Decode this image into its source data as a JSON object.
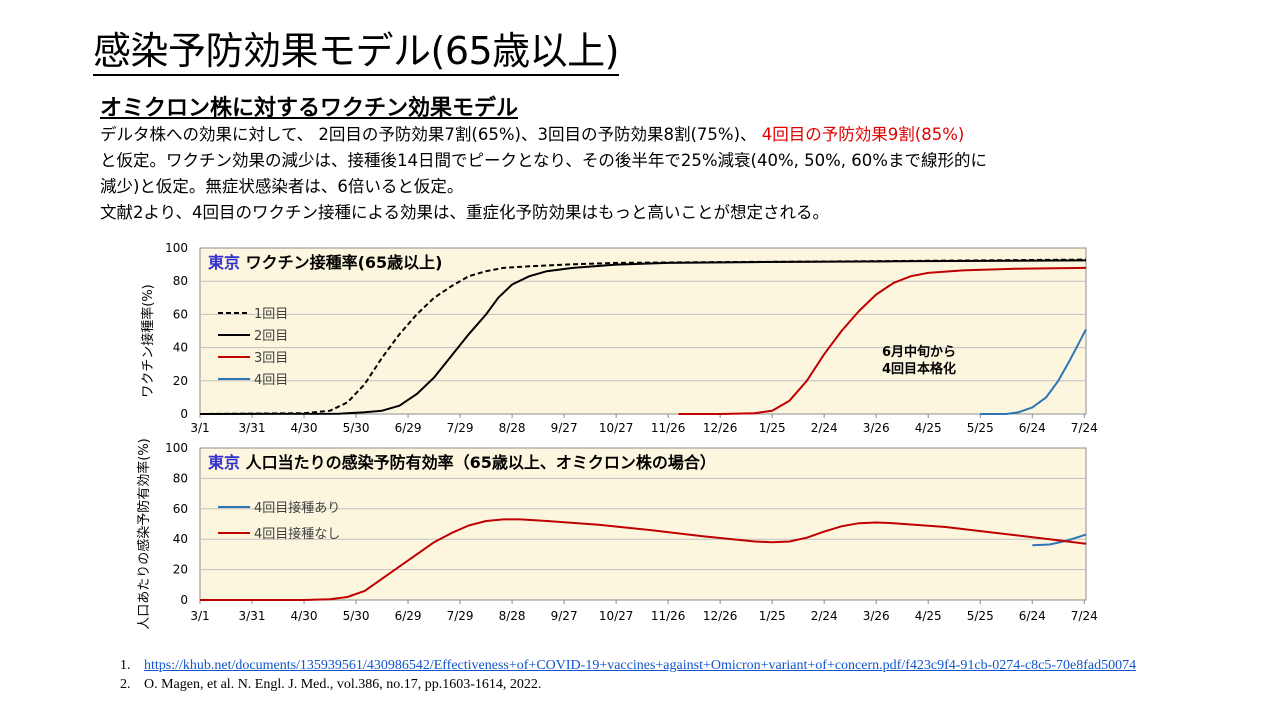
{
  "slide": {
    "title": "感染予防効果モデル(65歳以上)",
    "subtitle": "オミクロン株に対するワクチン効果モデル",
    "text": {
      "l1a": "デルタ株への効果に対して、 2回目の予防効果7割(65%)、3回目の予防効果8割(75%)、 ",
      "l1b": "4回目の予防効果9割(85%)",
      "l2": "と仮定。ワクチン効果の減少は、接種後14日間でピークとなり、その後半年で25%減衰(40%, 50%, 60%まで線形的に",
      "l3": "減少)と仮定。無症状感染者は、6倍いると仮定。",
      "l4": "文献2より、4回目のワクチン接種による効果は、重症化予防効果はもっと高いことが想定される。"
    }
  },
  "chart_data": [
    {
      "type": "line",
      "title_city": "東京",
      "title": "ワクチン接種率(65歳以上)",
      "ylabel": "ワクチン接種率(%)",
      "ylim": [
        0,
        100
      ],
      "yticks": [
        0,
        20,
        40,
        60,
        80,
        100
      ],
      "xticks": [
        "3/1",
        "3/31",
        "4/30",
        "5/30",
        "6/29",
        "7/29",
        "8/28",
        "9/27",
        "10/27",
        "11/26",
        "12/26",
        "1/25",
        "2/24",
        "3/26",
        "4/25",
        "5/25",
        "6/24",
        "7/24"
      ],
      "annotation": [
        "6月中旬から",
        "4回目本格化"
      ],
      "grid": true,
      "legend_position": "left",
      "series": [
        {
          "name": "1回目",
          "color": "#000000",
          "dash": true,
          "points": [
            [
              0,
              0
            ],
            [
              60,
              0.5
            ],
            [
              75,
              2
            ],
            [
              85,
              7
            ],
            [
              95,
              18
            ],
            [
              105,
              34
            ],
            [
              115,
              48
            ],
            [
              125,
              60
            ],
            [
              135,
              70
            ],
            [
              145,
              77
            ],
            [
              155,
              83
            ],
            [
              165,
              86
            ],
            [
              175,
              88
            ],
            [
              190,
              89
            ],
            [
              210,
              90
            ],
            [
              240,
              91
            ],
            [
              300,
              91.5
            ],
            [
              380,
              92
            ],
            [
              511,
              93
            ]
          ]
        },
        {
          "name": "2回目",
          "color": "#000000",
          "dash": false,
          "points": [
            [
              0,
              0
            ],
            [
              80,
              0.2
            ],
            [
              95,
              1
            ],
            [
              105,
              2
            ],
            [
              115,
              5
            ],
            [
              125,
              12
            ],
            [
              135,
              22
            ],
            [
              145,
              35
            ],
            [
              155,
              48
            ],
            [
              165,
              60
            ],
            [
              172,
              70
            ],
            [
              180,
              78
            ],
            [
              190,
              83
            ],
            [
              200,
              86
            ],
            [
              215,
              88
            ],
            [
              240,
              90
            ],
            [
              270,
              91
            ],
            [
              320,
              91.5
            ],
            [
              400,
              92
            ],
            [
              511,
              92.5
            ]
          ]
        },
        {
          "name": "3回目",
          "color": "#c00000",
          "dash": false,
          "points": [
            [
              276,
              0
            ],
            [
              300,
              0
            ],
            [
              320,
              0.5
            ],
            [
              330,
              2
            ],
            [
              340,
              8
            ],
            [
              350,
              20
            ],
            [
              360,
              36
            ],
            [
              370,
              50
            ],
            [
              380,
              62
            ],
            [
              390,
              72
            ],
            [
              400,
              79
            ],
            [
              410,
              83
            ],
            [
              420,
              85
            ],
            [
              440,
              86.5
            ],
            [
              470,
              87.5
            ],
            [
              511,
              88
            ]
          ]
        },
        {
          "name": "4回目",
          "color": "#2e75b6",
          "dash": false,
          "points": [
            [
              450,
              0
            ],
            [
              465,
              0
            ],
            [
              472,
              1
            ],
            [
              480,
              4
            ],
            [
              488,
              10
            ],
            [
              495,
              20
            ],
            [
              502,
              33
            ],
            [
              508,
              45
            ],
            [
              511,
              51
            ]
          ]
        }
      ]
    },
    {
      "type": "line",
      "title_city": "東京",
      "title": "人口当たりの感染予防有効率（65歳以上、オミクロン株の場合）",
      "ylabel": "人口あたりの感染予防有効率(%)",
      "ylim": [
        0,
        100
      ],
      "yticks": [
        0,
        20,
        40,
        60,
        80,
        100
      ],
      "xticks": [
        "3/1",
        "3/31",
        "4/30",
        "5/30",
        "6/29",
        "7/29",
        "8/28",
        "9/27",
        "10/27",
        "11/26",
        "12/26",
        "1/25",
        "2/24",
        "3/26",
        "4/25",
        "5/25",
        "6/24",
        "7/24"
      ],
      "grid": true,
      "legend_position": "left",
      "series": [
        {
          "name": "4回目接種あり",
          "color": "#2e75b6",
          "dash": false,
          "points": [
            [
              480,
              36
            ],
            [
              490,
              36.5
            ],
            [
              500,
              39
            ],
            [
              511,
              43
            ]
          ]
        },
        {
          "name": "4回目接種なし",
          "color": "#c00000",
          "dash": false,
          "points": [
            [
              0,
              0
            ],
            [
              60,
              0
            ],
            [
              75,
              0.5
            ],
            [
              85,
              2
            ],
            [
              95,
              6
            ],
            [
              105,
              14
            ],
            [
              115,
              22
            ],
            [
              125,
              30
            ],
            [
              135,
              38
            ],
            [
              145,
              44
            ],
            [
              155,
              49
            ],
            [
              165,
              52
            ],
            [
              175,
              53
            ],
            [
              185,
              53
            ],
            [
              200,
              52
            ],
            [
              230,
              49.5
            ],
            [
              260,
              46
            ],
            [
              290,
              42
            ],
            [
              320,
              38.5
            ],
            [
              330,
              38
            ],
            [
              340,
              38.5
            ],
            [
              350,
              41
            ],
            [
              360,
              45
            ],
            [
              370,
              48.5
            ],
            [
              380,
              50.5
            ],
            [
              390,
              51
            ],
            [
              400,
              50.5
            ],
            [
              430,
              48
            ],
            [
              460,
              44
            ],
            [
              490,
              40
            ],
            [
              511,
              37
            ]
          ]
        }
      ]
    }
  ],
  "references": [
    {
      "num": "1.",
      "text": "https://khub.net/documents/135939561/430986542/Effectiveness+of+COVID-19+vaccines+against+Omicron+variant+of+concern.pdf/f423c9f4-91cb-0274-c8c5-70e8fad50074"
    },
    {
      "num": "2.",
      "text": "O. Magen, et al. N. Engl. J. Med., vol.386, no.17, pp.1603-1614, 2022."
    }
  ]
}
